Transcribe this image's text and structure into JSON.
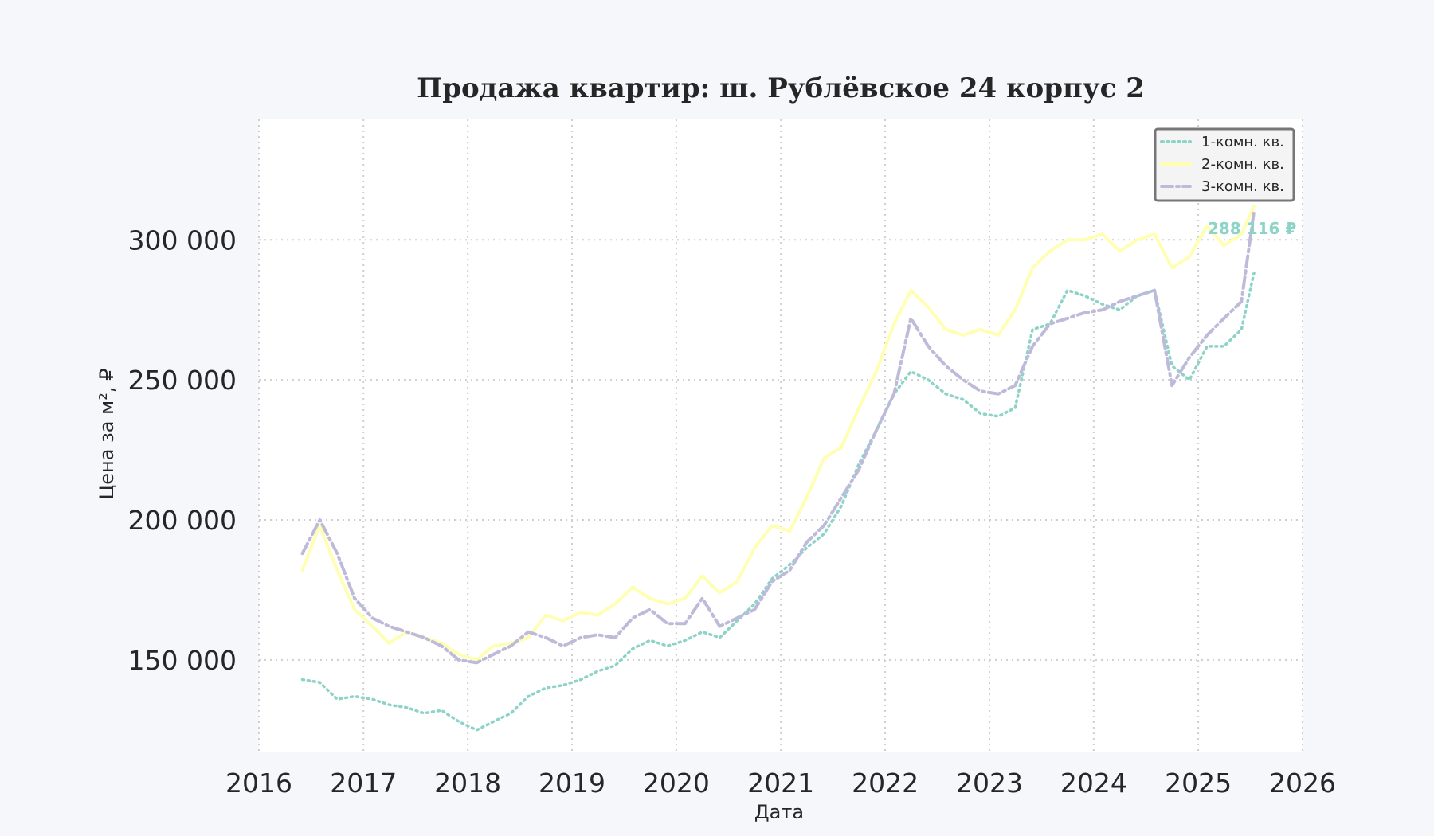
{
  "chart_data": {
    "type": "line",
    "title": "Продажа квартир: ш. Рублёвское 24 корпус 2",
    "xlabel": "Дата",
    "ylabel": "Цена за м², ₽",
    "xlim": [
      "2016-01-01",
      "2026-01-01"
    ],
    "ylim": [
      117000,
      343000
    ],
    "x_ticks": [
      "2016",
      "2017",
      "2018",
      "2019",
      "2020",
      "2021",
      "2022",
      "2023",
      "2024",
      "2025",
      "2026"
    ],
    "y_ticks": [
      150000,
      200000,
      250000,
      300000
    ],
    "y_tick_labels": [
      "150 000",
      "200 000",
      "250 000",
      "300 000"
    ],
    "grid": true,
    "legend_position": "top-right",
    "last_value_label": "288 116 ₽",
    "series": [
      {
        "name": "1-комн. кв.",
        "color": "#8dd3c7",
        "style": "dotted",
        "points": [
          [
            "2016-06-01",
            143000
          ],
          [
            "2016-08-01",
            142000
          ],
          [
            "2016-10-01",
            136000
          ],
          [
            "2016-12-01",
            137000
          ],
          [
            "2017-02-01",
            136000
          ],
          [
            "2017-04-01",
            134000
          ],
          [
            "2017-06-01",
            133000
          ],
          [
            "2017-08-01",
            131000
          ],
          [
            "2017-10-01",
            132000
          ],
          [
            "2017-12-01",
            128000
          ],
          [
            "2018-02-01",
            125000
          ],
          [
            "2018-04-01",
            128000
          ],
          [
            "2018-06-01",
            131000
          ],
          [
            "2018-08-01",
            137000
          ],
          [
            "2018-10-01",
            140000
          ],
          [
            "2018-12-01",
            141000
          ],
          [
            "2019-02-01",
            143000
          ],
          [
            "2019-04-01",
            146000
          ],
          [
            "2019-06-01",
            148000
          ],
          [
            "2019-08-01",
            154000
          ],
          [
            "2019-10-01",
            157000
          ],
          [
            "2019-12-01",
            155000
          ],
          [
            "2020-02-01",
            157000
          ],
          [
            "2020-04-01",
            160000
          ],
          [
            "2020-06-01",
            158000
          ],
          [
            "2020-08-01",
            164000
          ],
          [
            "2020-10-01",
            170000
          ],
          [
            "2020-12-01",
            179000
          ],
          [
            "2021-02-01",
            184000
          ],
          [
            "2021-04-01",
            190000
          ],
          [
            "2021-06-01",
            195000
          ],
          [
            "2021-08-01",
            205000
          ],
          [
            "2021-10-01",
            220000
          ],
          [
            "2021-12-01",
            232000
          ],
          [
            "2022-02-01",
            245000
          ],
          [
            "2022-04-01",
            253000
          ],
          [
            "2022-06-01",
            250000
          ],
          [
            "2022-08-01",
            245000
          ],
          [
            "2022-10-01",
            243000
          ],
          [
            "2022-12-01",
            238000
          ],
          [
            "2023-02-01",
            237000
          ],
          [
            "2023-04-01",
            240000
          ],
          [
            "2023-06-01",
            268000
          ],
          [
            "2023-08-01",
            270000
          ],
          [
            "2023-10-01",
            282000
          ],
          [
            "2023-12-01",
            280000
          ],
          [
            "2024-02-01",
            277000
          ],
          [
            "2024-04-01",
            275000
          ],
          [
            "2024-06-01",
            280000
          ],
          [
            "2024-08-01",
            282000
          ],
          [
            "2024-10-01",
            255000
          ],
          [
            "2024-12-01",
            250000
          ],
          [
            "2025-02-01",
            262000
          ],
          [
            "2025-04-01",
            262000
          ],
          [
            "2025-06-01",
            268000
          ],
          [
            "2025-07-15",
            288116
          ]
        ]
      },
      {
        "name": "2-комн. кв.",
        "color": "#ffffb3",
        "style": "solid",
        "points": [
          [
            "2016-06-01",
            182000
          ],
          [
            "2016-08-01",
            198000
          ],
          [
            "2016-10-01",
            182000
          ],
          [
            "2016-12-01",
            168000
          ],
          [
            "2017-02-01",
            162000
          ],
          [
            "2017-04-01",
            156000
          ],
          [
            "2017-06-01",
            160000
          ],
          [
            "2017-08-01",
            158000
          ],
          [
            "2017-10-01",
            156000
          ],
          [
            "2017-12-01",
            152000
          ],
          [
            "2018-02-01",
            150000
          ],
          [
            "2018-04-01",
            155000
          ],
          [
            "2018-06-01",
            156000
          ],
          [
            "2018-08-01",
            158000
          ],
          [
            "2018-10-01",
            166000
          ],
          [
            "2018-12-01",
            164000
          ],
          [
            "2019-02-01",
            167000
          ],
          [
            "2019-04-01",
            166000
          ],
          [
            "2019-06-01",
            170000
          ],
          [
            "2019-08-01",
            176000
          ],
          [
            "2019-10-01",
            172000
          ],
          [
            "2019-12-01",
            170000
          ],
          [
            "2020-02-01",
            172000
          ],
          [
            "2020-04-01",
            180000
          ],
          [
            "2020-06-01",
            174000
          ],
          [
            "2020-08-01",
            178000
          ],
          [
            "2020-10-01",
            190000
          ],
          [
            "2020-12-01",
            198000
          ],
          [
            "2021-02-01",
            196000
          ],
          [
            "2021-04-01",
            208000
          ],
          [
            "2021-06-01",
            222000
          ],
          [
            "2021-08-01",
            226000
          ],
          [
            "2021-10-01",
            240000
          ],
          [
            "2021-12-01",
            253000
          ],
          [
            "2022-02-01",
            270000
          ],
          [
            "2022-04-01",
            282000
          ],
          [
            "2022-06-01",
            276000
          ],
          [
            "2022-08-01",
            268000
          ],
          [
            "2022-10-01",
            266000
          ],
          [
            "2022-12-01",
            268000
          ],
          [
            "2023-02-01",
            266000
          ],
          [
            "2023-04-01",
            275000
          ],
          [
            "2023-06-01",
            290000
          ],
          [
            "2023-08-01",
            296000
          ],
          [
            "2023-10-01",
            300000
          ],
          [
            "2023-12-01",
            300000
          ],
          [
            "2024-02-01",
            302000
          ],
          [
            "2024-04-01",
            296000
          ],
          [
            "2024-06-01",
            300000
          ],
          [
            "2024-08-01",
            302000
          ],
          [
            "2024-10-01",
            290000
          ],
          [
            "2024-12-01",
            294000
          ],
          [
            "2025-02-01",
            305000
          ],
          [
            "2025-04-01",
            298000
          ],
          [
            "2025-06-01",
            302000
          ],
          [
            "2025-07-15",
            312000
          ]
        ]
      },
      {
        "name": "3-комн. кв.",
        "color": "#bebada",
        "style": "dashed",
        "points": [
          [
            "2016-06-01",
            188000
          ],
          [
            "2016-08-01",
            200000
          ],
          [
            "2016-10-01",
            188000
          ],
          [
            "2016-12-01",
            172000
          ],
          [
            "2017-02-01",
            165000
          ],
          [
            "2017-04-01",
            162000
          ],
          [
            "2017-06-01",
            160000
          ],
          [
            "2017-08-01",
            158000
          ],
          [
            "2017-10-01",
            155000
          ],
          [
            "2017-12-01",
            150000
          ],
          [
            "2018-02-01",
            149000
          ],
          [
            "2018-04-01",
            152000
          ],
          [
            "2018-06-01",
            155000
          ],
          [
            "2018-08-01",
            160000
          ],
          [
            "2018-10-01",
            158000
          ],
          [
            "2018-12-01",
            155000
          ],
          [
            "2019-02-01",
            158000
          ],
          [
            "2019-04-01",
            159000
          ],
          [
            "2019-06-01",
            158000
          ],
          [
            "2019-08-01",
            165000
          ],
          [
            "2019-10-01",
            168000
          ],
          [
            "2019-12-01",
            163000
          ],
          [
            "2020-02-01",
            163000
          ],
          [
            "2020-04-01",
            172000
          ],
          [
            "2020-06-01",
            162000
          ],
          [
            "2020-08-01",
            165000
          ],
          [
            "2020-10-01",
            168000
          ],
          [
            "2020-12-01",
            178000
          ],
          [
            "2021-02-01",
            182000
          ],
          [
            "2021-04-01",
            192000
          ],
          [
            "2021-06-01",
            198000
          ],
          [
            "2021-08-01",
            208000
          ],
          [
            "2021-10-01",
            218000
          ],
          [
            "2021-12-01",
            232000
          ],
          [
            "2022-02-01",
            245000
          ],
          [
            "2022-04-01",
            272000
          ],
          [
            "2022-06-01",
            262000
          ],
          [
            "2022-08-01",
            255000
          ],
          [
            "2022-10-01",
            250000
          ],
          [
            "2022-12-01",
            246000
          ],
          [
            "2023-02-01",
            245000
          ],
          [
            "2023-04-01",
            248000
          ],
          [
            "2023-06-01",
            262000
          ],
          [
            "2023-08-01",
            270000
          ],
          [
            "2023-10-01",
            272000
          ],
          [
            "2023-12-01",
            274000
          ],
          [
            "2024-02-01",
            275000
          ],
          [
            "2024-04-01",
            278000
          ],
          [
            "2024-06-01",
            280000
          ],
          [
            "2024-08-01",
            282000
          ],
          [
            "2024-10-01",
            248000
          ],
          [
            "2024-12-01",
            258000
          ],
          [
            "2025-02-01",
            266000
          ],
          [
            "2025-04-01",
            272000
          ],
          [
            "2025-06-01",
            278000
          ],
          [
            "2025-07-15",
            310000
          ]
        ]
      }
    ]
  }
}
